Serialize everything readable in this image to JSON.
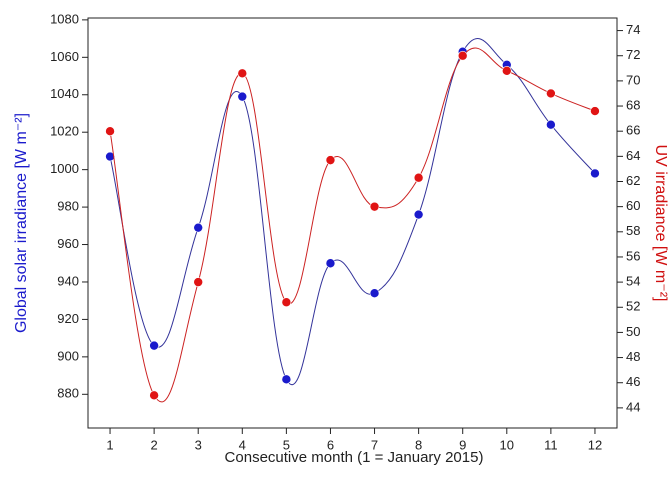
{
  "chart_data": {
    "type": "scatter",
    "x_label": "Consecutive month (1 = January 2015)",
    "y_label": "Global solar irradiance [W m⁻²]",
    "y2_label": "UV irradiance [W m⁻²]",
    "x": [
      1,
      2,
      3,
      4,
      5,
      6,
      7,
      8,
      9,
      10,
      11,
      12
    ],
    "xlim": [
      0.5,
      12.5
    ],
    "xticks": [
      1,
      2,
      3,
      4,
      5,
      6,
      7,
      8,
      9,
      10,
      11,
      12
    ],
    "ylim": [
      862,
      1081
    ],
    "yticks": [
      880,
      900,
      920,
      940,
      960,
      980,
      1000,
      1020,
      1040,
      1060,
      1080
    ],
    "y2lim": [
      42.4,
      75
    ],
    "y2ticks": [
      44,
      46,
      48,
      50,
      52,
      54,
      56,
      58,
      60,
      62,
      64,
      66,
      68,
      70,
      72,
      74
    ],
    "series": [
      {
        "color": "#1a1acc",
        "line_color": "#33339a",
        "values": [
          1007,
          906,
          969,
          1039,
          888,
          950,
          934,
          976,
          1063,
          1056,
          1024,
          998
        ]
      },
      {
        "color": "#e01414",
        "line_color": "#cc2222",
        "axis": "y2",
        "values": [
          66,
          45,
          54,
          70.6,
          52.4,
          63.7,
          60,
          62.3,
          72,
          70.8,
          69,
          67.6
        ]
      }
    ]
  }
}
